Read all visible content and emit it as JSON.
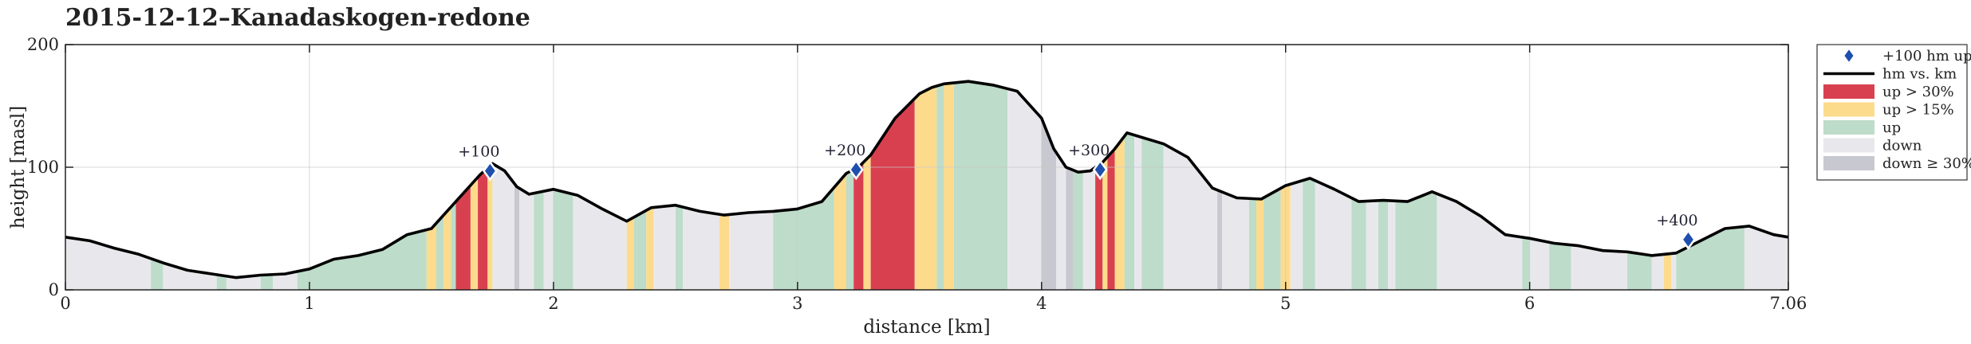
{
  "chart_data": {
    "type": "area",
    "title": "2015-12-12–Kanadaskogen-redone",
    "xlabel": "distance [km]",
    "ylabel": "height [masl]",
    "xlim": [
      0,
      7.06
    ],
    "ylim": [
      0,
      200
    ],
    "x_ticks": [
      "0",
      "1",
      "2",
      "3",
      "4",
      "5",
      "6",
      "7.06"
    ],
    "x_tick_values": [
      0,
      1,
      2,
      3,
      4,
      5,
      6,
      7.06
    ],
    "y_ticks": [
      "0",
      "100",
      "200"
    ],
    "y_tick_values": [
      0,
      100,
      200
    ],
    "grid": true,
    "legend_position": "outside-right",
    "colors": {
      "up30": "#d9404f",
      "up15": "#fddb8c",
      "up": "#bddcc9",
      "down": "#e8e8ec",
      "down30": "#c8c8d0",
      "line": "#000000",
      "marker": "#1f4fae"
    },
    "legend": [
      {
        "key": "marker",
        "label": "+100 hm up"
      },
      {
        "key": "line",
        "label": "hm vs. km"
      },
      {
        "key": "up30",
        "label": "up > 30%"
      },
      {
        "key": "up15",
        "label": "up > 15%"
      },
      {
        "key": "up",
        "label": "up"
      },
      {
        "key": "down",
        "label": "down"
      },
      {
        "key": "down30",
        "label": "down ≥ 30%"
      }
    ],
    "series": [
      {
        "name": "hm vs. km",
        "x": [
          0,
          0.1,
          0.2,
          0.3,
          0.4,
          0.5,
          0.6,
          0.7,
          0.8,
          0.9,
          1.0,
          1.1,
          1.2,
          1.3,
          1.4,
          1.5,
          1.6,
          1.7,
          1.75,
          1.8,
          1.85,
          1.9,
          2.0,
          2.1,
          2.2,
          2.3,
          2.4,
          2.5,
          2.6,
          2.7,
          2.8,
          2.9,
          3.0,
          3.1,
          3.2,
          3.25,
          3.3,
          3.4,
          3.45,
          3.5,
          3.55,
          3.6,
          3.7,
          3.8,
          3.9,
          4.0,
          4.05,
          4.1,
          4.15,
          4.2,
          4.25,
          4.3,
          4.35,
          4.4,
          4.5,
          4.6,
          4.7,
          4.8,
          4.9,
          5.0,
          5.1,
          5.2,
          5.3,
          5.4,
          5.5,
          5.6,
          5.7,
          5.8,
          5.9,
          6.0,
          6.1,
          6.2,
          6.3,
          6.4,
          6.5,
          6.6,
          6.7,
          6.8,
          6.9,
          7.0,
          7.06
        ],
        "y": [
          43,
          40,
          34,
          29,
          22,
          16,
          13,
          10,
          12,
          13,
          17,
          25,
          28,
          33,
          45,
          50,
          72,
          94,
          103,
          97,
          84,
          78,
          82,
          77,
          66,
          56,
          67,
          69,
          64,
          61,
          63,
          64,
          66,
          72,
          95,
          100,
          110,
          140,
          150,
          160,
          165,
          168,
          170,
          167,
          162,
          140,
          115,
          100,
          96,
          97,
          104,
          115,
          128,
          125,
          119,
          108,
          83,
          75,
          74,
          85,
          91,
          82,
          72,
          73,
          72,
          80,
          72,
          60,
          45,
          42,
          38,
          36,
          32,
          31,
          28,
          30,
          40,
          50,
          52,
          45,
          43
        ]
      }
    ],
    "segments": [
      {
        "from": 0,
        "to": 0.35,
        "type": "down"
      },
      {
        "from": 0.35,
        "to": 0.4,
        "type": "up"
      },
      {
        "from": 0.4,
        "to": 0.62,
        "type": "down"
      },
      {
        "from": 0.62,
        "to": 0.66,
        "type": "up"
      },
      {
        "from": 0.66,
        "to": 0.8,
        "type": "down"
      },
      {
        "from": 0.8,
        "to": 0.85,
        "type": "up"
      },
      {
        "from": 0.85,
        "to": 0.95,
        "type": "down"
      },
      {
        "from": 0.95,
        "to": 1.0,
        "type": "up"
      },
      {
        "from": 1.0,
        "to": 1.48,
        "type": "up"
      },
      {
        "from": 1.48,
        "to": 1.52,
        "type": "up15"
      },
      {
        "from": 1.52,
        "to": 1.55,
        "type": "up"
      },
      {
        "from": 1.55,
        "to": 1.58,
        "type": "up15"
      },
      {
        "from": 1.58,
        "to": 1.6,
        "type": "up"
      },
      {
        "from": 1.6,
        "to": 1.66,
        "type": "up30"
      },
      {
        "from": 1.66,
        "to": 1.69,
        "type": "up15"
      },
      {
        "from": 1.69,
        "to": 1.73,
        "type": "up30"
      },
      {
        "from": 1.73,
        "to": 1.75,
        "type": "up15"
      },
      {
        "from": 1.75,
        "to": 1.84,
        "type": "down"
      },
      {
        "from": 1.84,
        "to": 1.86,
        "type": "down30"
      },
      {
        "from": 1.86,
        "to": 1.92,
        "type": "down"
      },
      {
        "from": 1.92,
        "to": 1.96,
        "type": "up"
      },
      {
        "from": 1.96,
        "to": 2.0,
        "type": "down"
      },
      {
        "from": 2.0,
        "to": 2.08,
        "type": "up"
      },
      {
        "from": 2.08,
        "to": 2.3,
        "type": "down"
      },
      {
        "from": 2.3,
        "to": 2.33,
        "type": "up15"
      },
      {
        "from": 2.33,
        "to": 2.38,
        "type": "up"
      },
      {
        "from": 2.38,
        "to": 2.41,
        "type": "up15"
      },
      {
        "from": 2.41,
        "to": 2.5,
        "type": "down"
      },
      {
        "from": 2.5,
        "to": 2.53,
        "type": "up"
      },
      {
        "from": 2.53,
        "to": 2.68,
        "type": "down"
      },
      {
        "from": 2.68,
        "to": 2.72,
        "type": "up15"
      },
      {
        "from": 2.72,
        "to": 2.9,
        "type": "down"
      },
      {
        "from": 2.9,
        "to": 3.15,
        "type": "up"
      },
      {
        "from": 3.15,
        "to": 3.2,
        "type": "up15"
      },
      {
        "from": 3.2,
        "to": 3.23,
        "type": "up"
      },
      {
        "from": 3.23,
        "to": 3.27,
        "type": "up30"
      },
      {
        "from": 3.27,
        "to": 3.3,
        "type": "up15"
      },
      {
        "from": 3.3,
        "to": 3.48,
        "type": "up30"
      },
      {
        "from": 3.48,
        "to": 3.57,
        "type": "up15"
      },
      {
        "from": 3.57,
        "to": 3.6,
        "type": "up"
      },
      {
        "from": 3.6,
        "to": 3.64,
        "type": "up15"
      },
      {
        "from": 3.64,
        "to": 3.7,
        "type": "up"
      },
      {
        "from": 3.7,
        "to": 3.86,
        "type": "up"
      },
      {
        "from": 3.86,
        "to": 4.0,
        "type": "down"
      },
      {
        "from": 4.0,
        "to": 4.06,
        "type": "down30"
      },
      {
        "from": 4.06,
        "to": 4.1,
        "type": "down"
      },
      {
        "from": 4.1,
        "to": 4.13,
        "type": "down30"
      },
      {
        "from": 4.13,
        "to": 4.17,
        "type": "up"
      },
      {
        "from": 4.17,
        "to": 4.22,
        "type": "down"
      },
      {
        "from": 4.22,
        "to": 4.25,
        "type": "up30"
      },
      {
        "from": 4.25,
        "to": 4.27,
        "type": "up15"
      },
      {
        "from": 4.27,
        "to": 4.3,
        "type": "up30"
      },
      {
        "from": 4.3,
        "to": 4.34,
        "type": "up15"
      },
      {
        "from": 4.34,
        "to": 4.38,
        "type": "up"
      },
      {
        "from": 4.38,
        "to": 4.41,
        "type": "down"
      },
      {
        "from": 4.41,
        "to": 4.5,
        "type": "up"
      },
      {
        "from": 4.5,
        "to": 4.72,
        "type": "down"
      },
      {
        "from": 4.72,
        "to": 4.74,
        "type": "down30"
      },
      {
        "from": 4.74,
        "to": 4.85,
        "type": "down"
      },
      {
        "from": 4.85,
        "to": 4.88,
        "type": "up"
      },
      {
        "from": 4.88,
        "to": 4.91,
        "type": "up15"
      },
      {
        "from": 4.91,
        "to": 4.98,
        "type": "up"
      },
      {
        "from": 4.98,
        "to": 5.02,
        "type": "up15"
      },
      {
        "from": 5.02,
        "to": 5.07,
        "type": "down"
      },
      {
        "from": 5.07,
        "to": 5.12,
        "type": "up"
      },
      {
        "from": 5.12,
        "to": 5.27,
        "type": "down"
      },
      {
        "from": 5.27,
        "to": 5.33,
        "type": "up"
      },
      {
        "from": 5.33,
        "to": 5.38,
        "type": "down"
      },
      {
        "from": 5.38,
        "to": 5.42,
        "type": "up"
      },
      {
        "from": 5.42,
        "to": 5.45,
        "type": "down"
      },
      {
        "from": 5.45,
        "to": 5.62,
        "type": "up"
      },
      {
        "from": 5.62,
        "to": 5.97,
        "type": "down"
      },
      {
        "from": 5.97,
        "to": 6.0,
        "type": "up"
      },
      {
        "from": 6.0,
        "to": 6.08,
        "type": "down"
      },
      {
        "from": 6.08,
        "to": 6.17,
        "type": "up"
      },
      {
        "from": 6.17,
        "to": 6.4,
        "type": "down"
      },
      {
        "from": 6.4,
        "to": 6.5,
        "type": "up"
      },
      {
        "from": 6.5,
        "to": 6.55,
        "type": "down"
      },
      {
        "from": 6.55,
        "to": 6.58,
        "type": "up15"
      },
      {
        "from": 6.58,
        "to": 6.6,
        "type": "down"
      },
      {
        "from": 6.6,
        "to": 6.88,
        "type": "up"
      },
      {
        "from": 6.88,
        "to": 7.06,
        "type": "down"
      }
    ],
    "markers": [
      {
        "x": 1.74,
        "y": 97,
        "label": "+100"
      },
      {
        "x": 3.24,
        "y": 98,
        "label": "+200"
      },
      {
        "x": 4.24,
        "y": 98,
        "label": "+300"
      },
      {
        "x": 6.65,
        "y": 41,
        "label": "+400"
      }
    ]
  }
}
